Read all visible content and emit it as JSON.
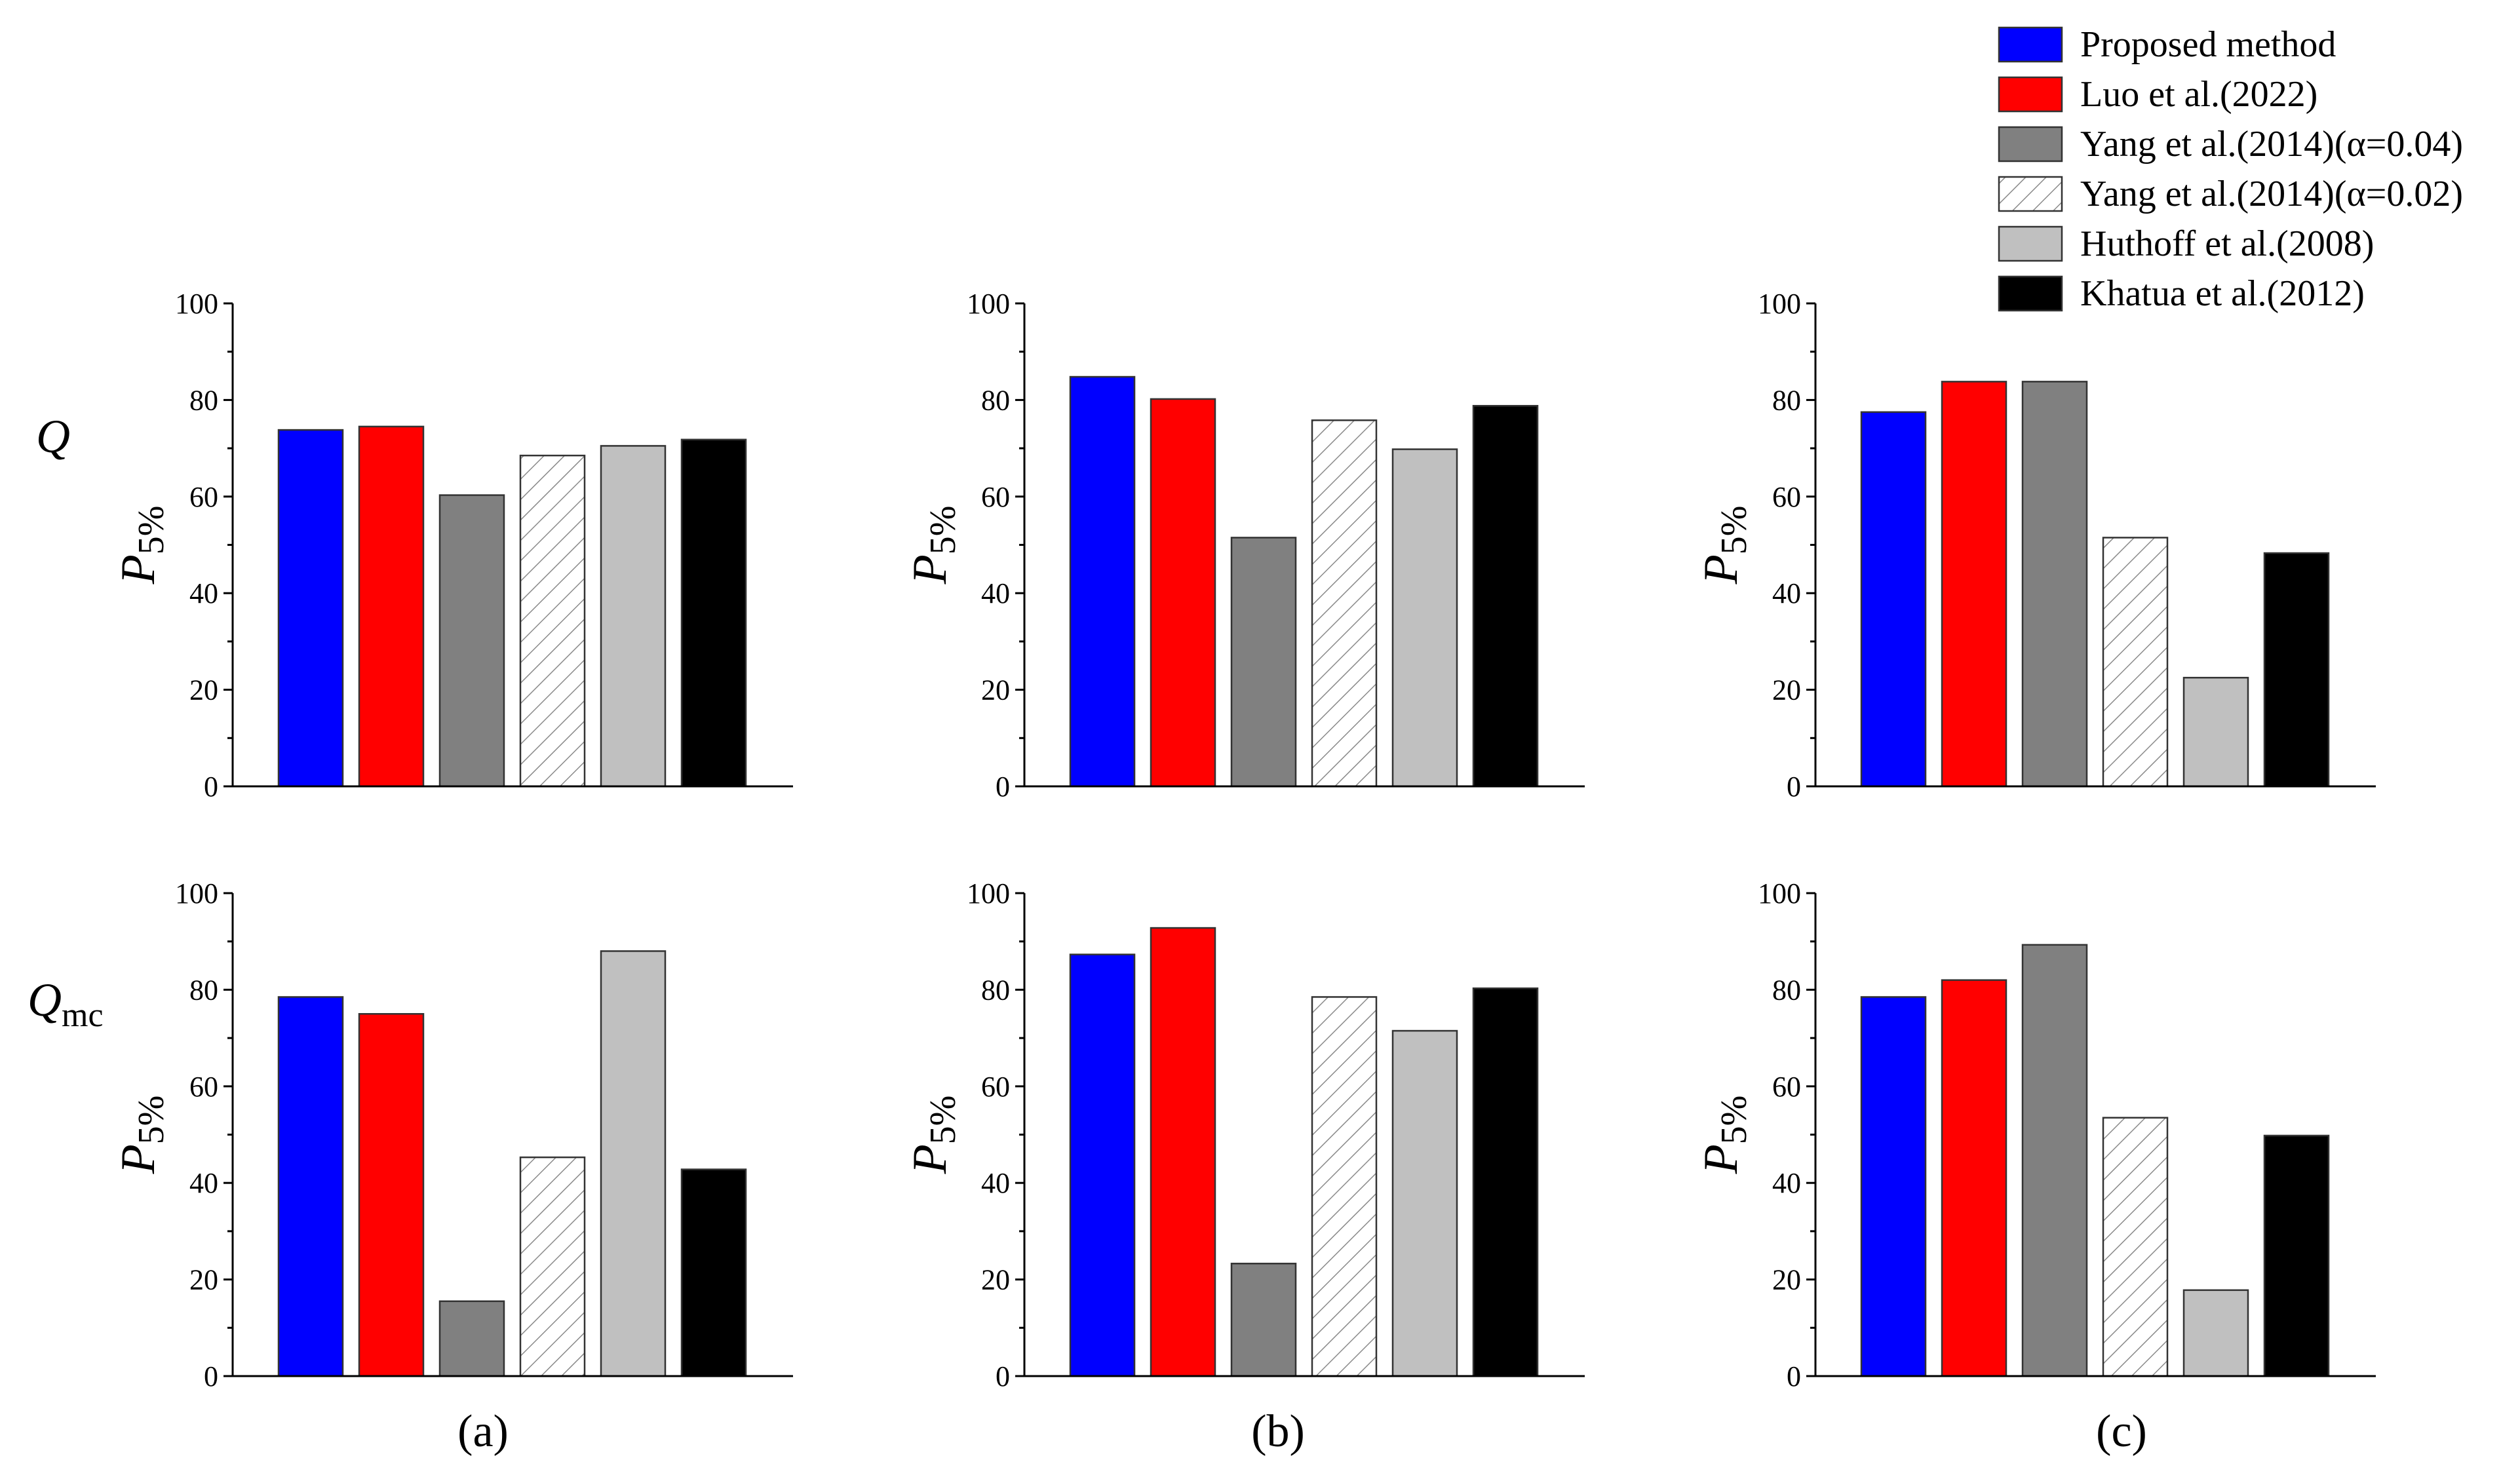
{
  "colors": {
    "proposed": "#0000ff",
    "luo": "#ff0000",
    "yang004": "#808080",
    "yang002": "hatch",
    "huthoff": "#c0c0c0",
    "khatua": "#000000"
  },
  "legend": [
    {
      "key": "proposed",
      "label": "Proposed method"
    },
    {
      "key": "luo",
      "label": "Luo et al.(2022)"
    },
    {
      "key": "yang004",
      "label": "Yang et al.(2014)(α=0.04)"
    },
    {
      "key": "yang002",
      "label": "Yang et al.(2014)(α=0.02)"
    },
    {
      "key": "huthoff",
      "label": "Huthoff et al.(2008)"
    },
    {
      "key": "khatua",
      "label": "Khatua et al.(2012)"
    }
  ],
  "row_labels": [
    {
      "main": "Q",
      "sub": ""
    },
    {
      "main": "Q",
      "sub": "mc"
    }
  ],
  "panel_labels": [
    "(a)",
    "(b)",
    "(c)"
  ],
  "ylabel": {
    "main": "P",
    "sub": "5%"
  },
  "chart_data": [
    {
      "type": "bar",
      "panel": "(a)",
      "row": "Q",
      "ylim": [
        0,
        100
      ],
      "yticks": [
        "0",
        "20",
        "40",
        "60",
        "80",
        "100"
      ],
      "series": [
        "Proposed method",
        "Luo et al.(2022)",
        "Yang et al.(2014)(α=0.04)",
        "Yang et al.(2014)(α=0.02)",
        "Huthoff et al.(2008)",
        "Khatua et al.(2012)"
      ],
      "values": [
        73.8,
        74.5,
        60.3,
        68.5,
        70.5,
        71.8
      ]
    },
    {
      "type": "bar",
      "panel": "(b)",
      "row": "Q",
      "ylim": [
        0,
        100
      ],
      "yticks": [
        "0",
        "20",
        "40",
        "60",
        "80",
        "100"
      ],
      "series": [
        "Proposed method",
        "Luo et al.(2022)",
        "Yang et al.(2014)(α=0.04)",
        "Yang et al.(2014)(α=0.02)",
        "Huthoff et al.(2008)",
        "Khatua et al.(2012)"
      ],
      "values": [
        84.8,
        80.2,
        51.5,
        75.8,
        69.8,
        78.8
      ]
    },
    {
      "type": "bar",
      "panel": "(c)",
      "row": "Q",
      "ylim": [
        0,
        100
      ],
      "yticks": [
        "0",
        "20",
        "40",
        "60",
        "80",
        "100"
      ],
      "series": [
        "Proposed method",
        "Luo et al.(2022)",
        "Yang et al.(2014)(α=0.04)",
        "Yang et al.(2014)(α=0.02)",
        "Huthoff et al.(2008)",
        "Khatua et al.(2012)"
      ],
      "values": [
        77.5,
        83.8,
        83.8,
        51.5,
        22.5,
        48.3
      ]
    },
    {
      "type": "bar",
      "panel": "(a)",
      "row": "Qmc",
      "ylim": [
        0,
        100
      ],
      "yticks": [
        "0",
        "20",
        "40",
        "60",
        "80",
        "100"
      ],
      "series": [
        "Proposed method",
        "Luo et al.(2022)",
        "Yang et al.(2014)(α=0.04)",
        "Yang et al.(2014)(α=0.02)",
        "Huthoff et al.(2008)",
        "Khatua et al.(2012)"
      ],
      "values": [
        78.5,
        75.0,
        15.5,
        45.3,
        88.0,
        42.8
      ]
    },
    {
      "type": "bar",
      "panel": "(b)",
      "row": "Qmc",
      "ylim": [
        0,
        100
      ],
      "yticks": [
        "0",
        "20",
        "40",
        "60",
        "80",
        "100"
      ],
      "series": [
        "Proposed method",
        "Luo et al.(2022)",
        "Yang et al.(2014)(α=0.04)",
        "Yang et al.(2014)(α=0.02)",
        "Huthoff et al.(2008)",
        "Khatua et al.(2012)"
      ],
      "values": [
        87.3,
        92.8,
        23.3,
        78.5,
        71.5,
        80.3
      ]
    },
    {
      "type": "bar",
      "panel": "(c)",
      "row": "Qmc",
      "ylim": [
        0,
        100
      ],
      "yticks": [
        "0",
        "20",
        "40",
        "60",
        "80",
        "100"
      ],
      "series": [
        "Proposed method",
        "Luo et al.(2022)",
        "Yang et al.(2014)(α=0.04)",
        "Yang et al.(2014)(α=0.02)",
        "Huthoff et al.(2008)",
        "Khatua et al.(2012)"
      ],
      "values": [
        78.5,
        82.0,
        89.3,
        53.5,
        17.8,
        49.8
      ]
    }
  ]
}
